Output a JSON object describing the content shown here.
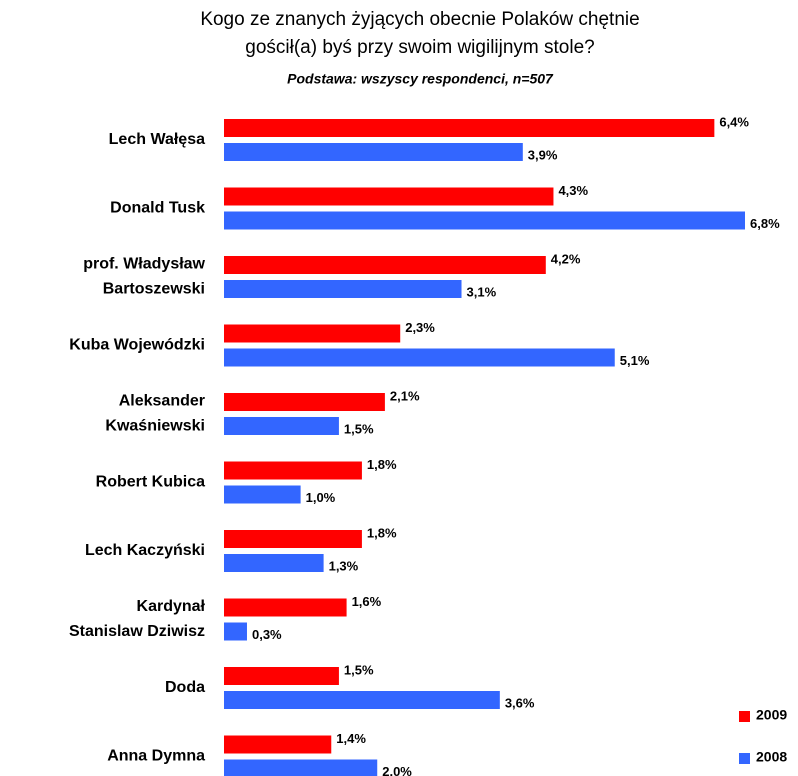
{
  "chart_data": {
    "type": "hbar",
    "title": "Kogo ze znanych żyjących obecnie Polaków chętnie\ngościł(a) byś przy swoim wigilijnym stole?",
    "subtitle": "Podstawa: wszyscy respondenci, n=507",
    "categories": [
      "Lech Wałęsa",
      "Donald Tusk",
      "prof. Władysław\nBartoszewski",
      "Kuba Wojewódzki",
      "Aleksander\nKwaśniewski",
      "Robert Kubica",
      "Lech Kaczyński",
      "Kardynał\nStanislaw Dziwisz",
      "Doda",
      "Anna Dymna"
    ],
    "series": [
      {
        "name": "2009",
        "color": "#ff0000",
        "values": [
          6.4,
          4.3,
          4.2,
          2.3,
          2.1,
          1.8,
          1.8,
          1.6,
          1.5,
          1.4
        ],
        "value_labels": [
          "6,4%",
          "4,3%",
          "4,2%",
          "2,3%",
          "2,1%",
          "1,8%",
          "1,8%",
          "1,6%",
          "1,5%",
          "1,4%"
        ]
      },
      {
        "name": "2008",
        "color": "#3366ff",
        "values": [
          3.9,
          6.8,
          3.1,
          5.1,
          1.5,
          1.0,
          1.3,
          0.3,
          3.6,
          2.0
        ],
        "value_labels": [
          "3,9%",
          "6,8%",
          "3,1%",
          "5,1%",
          "1,5%",
          "1,0%",
          "1,3%",
          "0,3%",
          "3,6%",
          "2,0%"
        ]
      }
    ],
    "legend": "lower right"
  }
}
